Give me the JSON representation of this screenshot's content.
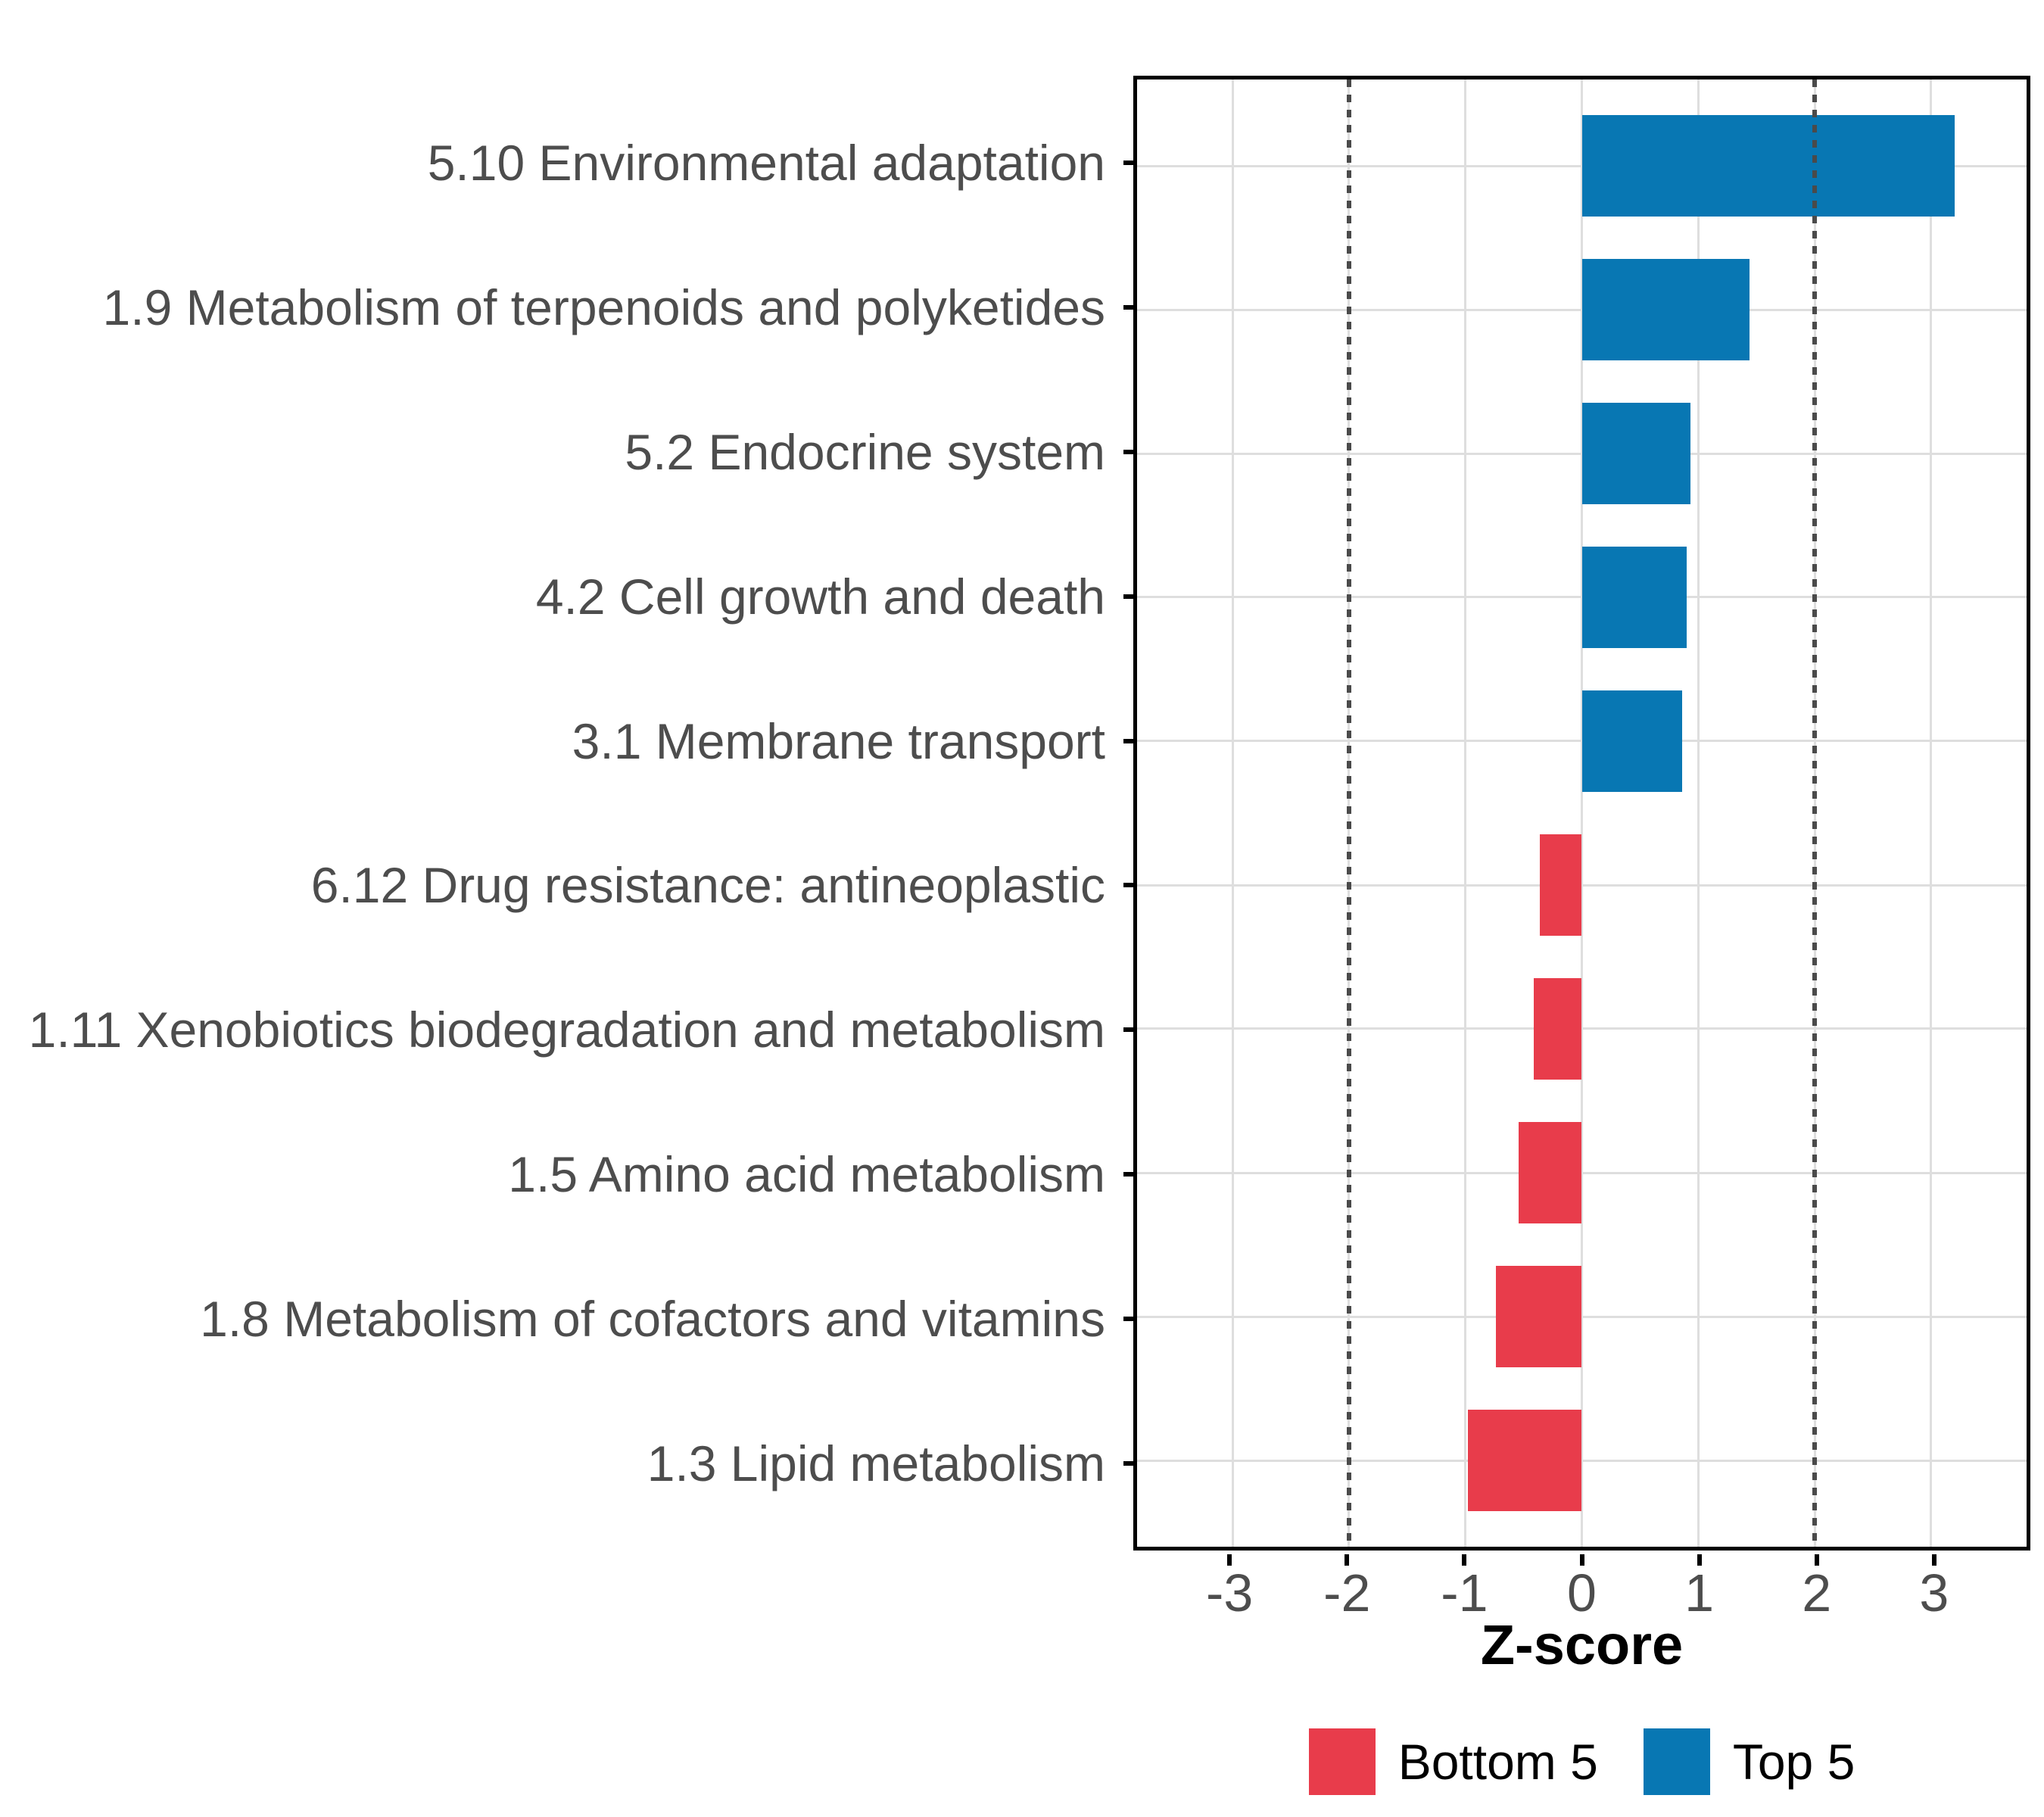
{
  "chart_data": {
    "type": "bar",
    "orientation": "horizontal",
    "title": "",
    "xlabel": "Z-score",
    "ylabel": "",
    "categories": [
      "5.10 Environmental adaptation",
      "1.9 Metabolism of terpenoids and polyketides",
      "5.2 Endocrine system",
      "4.2 Cell growth and death",
      "3.1 Membrane transport",
      "6.12 Drug resistance: antineoplastic",
      "1.11 Xenobiotics biodegradation and metabolism",
      "1.5 Amino acid metabolism",
      "1.8 Metabolism of cofactors and vitamins",
      "1.3 Lipid metabolism"
    ],
    "values": [
      3.2,
      1.44,
      0.93,
      0.9,
      0.86,
      -0.36,
      -0.41,
      -0.54,
      -0.74,
      -0.98
    ],
    "series": [
      {
        "name": "Top 5",
        "color": "#0877B3",
        "applies_to": "positive values"
      },
      {
        "name": "Bottom 5",
        "color": "#E83C4B",
        "applies_to": "negative values"
      }
    ],
    "xlim": [
      -3.82,
      3.82
    ],
    "xticks": [
      -3,
      -2,
      -1,
      0,
      1,
      2,
      3
    ],
    "reference_lines": {
      "positions": [
        -2,
        2
      ],
      "style": "dotted",
      "color": "#4a4a4a"
    },
    "grid": true,
    "grid_color": "#DEDEDE",
    "legend_position": "bottom",
    "legend": [
      {
        "label": "Bottom 5",
        "color": "#E83C4B"
      },
      {
        "label": "Top 5",
        "color": "#0877B3"
      }
    ],
    "colors": {
      "top": "#0877B3",
      "bottom": "#E83C4B"
    },
    "axis_text_color": "#4D4D4D",
    "panel_border_color": "#000000"
  }
}
